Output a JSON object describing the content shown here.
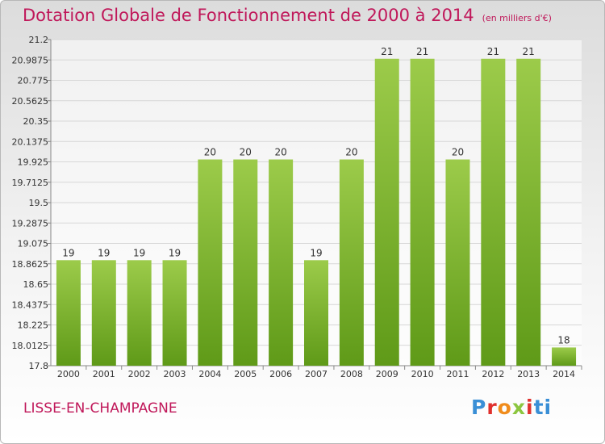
{
  "header": {
    "title": "Dotation Globale de Fonctionnement de 2000 à 2014",
    "unit": "(en milliers d'€)"
  },
  "footer": {
    "commune": "LISSE-EN-CHAMPAGNE",
    "logo": "Proxiti"
  },
  "colors": {
    "title": "#c0185a",
    "bar_top": "#9ccb4a",
    "bar_bottom": "#5f9a18",
    "grid": "#d7d7d7"
  },
  "chart_data": {
    "type": "bar",
    "title": "Dotation Globale de Fonctionnement de 2000 à 2014",
    "subtitle": "(en milliers d'€)",
    "xlabel": "",
    "ylabel": "",
    "categories": [
      "2000",
      "2001",
      "2002",
      "2003",
      "2004",
      "2005",
      "2006",
      "2007",
      "2008",
      "2009",
      "2010",
      "2011",
      "2012",
      "2013",
      "2014"
    ],
    "values": [
      19,
      19,
      19,
      19,
      20,
      20,
      20,
      19,
      20,
      21,
      21,
      20,
      21,
      21,
      18
    ],
    "bar_values": [
      18.9,
      18.9,
      18.9,
      18.9,
      19.95,
      19.95,
      19.95,
      18.9,
      19.95,
      21.0,
      21.0,
      19.95,
      21.0,
      21.0,
      17.99
    ],
    "data_labels": [
      "19",
      "19",
      "19",
      "19",
      "20",
      "20",
      "20",
      "19",
      "20",
      "21",
      "21",
      "20",
      "21",
      "21",
      "18"
    ],
    "y_ticks": [
      "17.8",
      "18.0125",
      "18.225",
      "18.4375",
      "18.65",
      "18.8625",
      "19.075",
      "19.2875",
      "19.5",
      "19.7125",
      "19.925",
      "20.1375",
      "20.35",
      "20.5625",
      "20.775",
      "20.9875",
      "21.2"
    ],
    "ylim": [
      17.8,
      21.2
    ],
    "grid": true,
    "legend": "none"
  }
}
